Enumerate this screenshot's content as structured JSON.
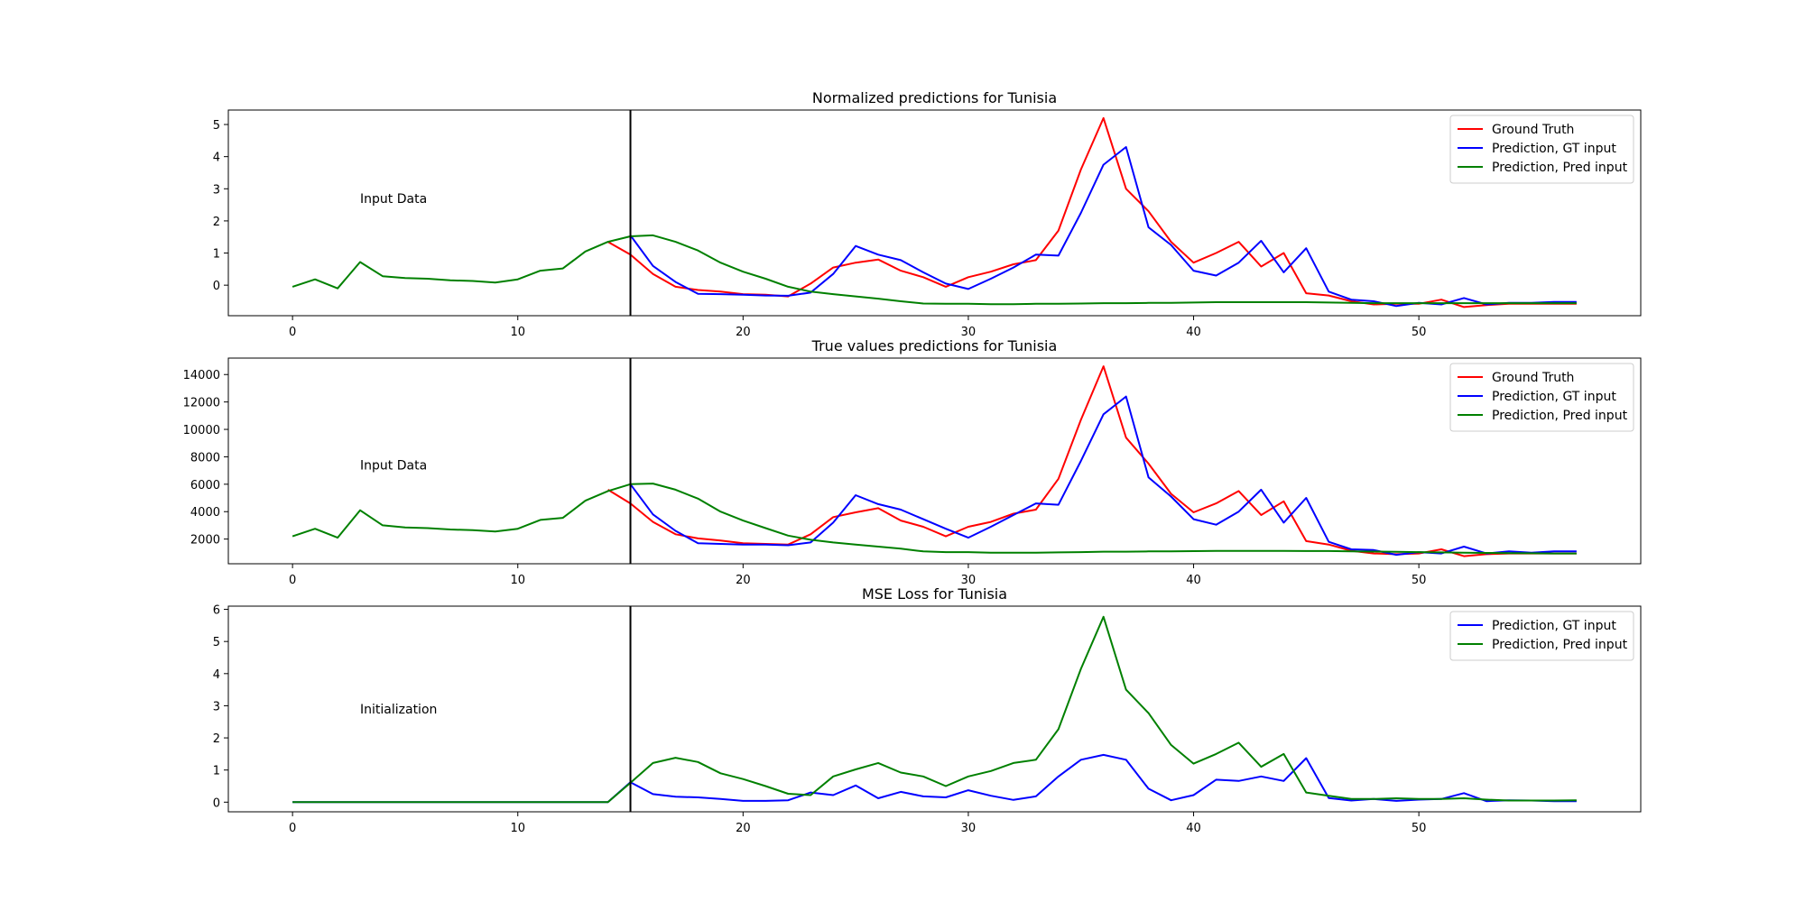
{
  "chart_data": [
    {
      "type": "line",
      "title": "Normalized predictions for Tunisia",
      "xlabel": "",
      "ylabel": "",
      "xlim": [
        -2.85,
        59.85
      ],
      "ylim": [
        -0.95,
        5.45
      ],
      "xticks": [
        0,
        10,
        20,
        30,
        40,
        50
      ],
      "yticks": [
        0,
        1,
        2,
        3,
        4,
        5
      ],
      "vline_x": 15,
      "annotation": {
        "text": "Input Data",
        "x": 3,
        "y": 2.7
      },
      "legend_position": "top-right",
      "grid": false,
      "series": [
        {
          "name": "Ground Truth",
          "color": "#ff0000",
          "x": [
            14,
            15,
            16,
            17,
            18,
            19,
            20,
            21,
            22,
            23,
            24,
            25,
            26,
            27,
            28,
            29,
            30,
            31,
            32,
            33,
            34,
            35,
            36,
            37,
            38,
            39,
            40,
            41,
            42,
            43,
            44,
            45,
            46,
            47,
            48,
            49,
            50,
            51,
            52,
            53,
            54,
            55,
            56,
            57
          ],
          "values": [
            1.35,
            0.95,
            0.35,
            -0.05,
            -0.15,
            -0.2,
            -0.28,
            -0.3,
            -0.35,
            0.05,
            0.55,
            0.7,
            0.8,
            0.45,
            0.25,
            -0.05,
            0.25,
            0.42,
            0.65,
            0.78,
            1.7,
            3.6,
            5.2,
            3.0,
            2.3,
            1.35,
            0.7,
            1.0,
            1.35,
            0.58,
            1.0,
            -0.25,
            -0.32,
            -0.5,
            -0.6,
            -0.58,
            -0.58,
            -0.45,
            -0.68,
            -0.62,
            -0.58,
            -0.58,
            -0.58,
            -0.58
          ]
        },
        {
          "name": "Prediction, GT input",
          "color": "#0000ff",
          "x": [
            15,
            16,
            17,
            18,
            19,
            20,
            21,
            22,
            23,
            24,
            25,
            26,
            27,
            28,
            29,
            30,
            31,
            32,
            33,
            34,
            35,
            36,
            37,
            38,
            39,
            40,
            41,
            42,
            43,
            44,
            45,
            46,
            47,
            48,
            49,
            50,
            51,
            52,
            53,
            54,
            55,
            56,
            57
          ],
          "values": [
            1.55,
            0.6,
            0.1,
            -0.27,
            -0.28,
            -0.3,
            -0.32,
            -0.33,
            -0.23,
            0.35,
            1.22,
            0.95,
            0.78,
            0.4,
            0.05,
            -0.12,
            0.2,
            0.55,
            0.95,
            0.92,
            2.25,
            3.75,
            4.3,
            1.8,
            1.25,
            0.45,
            0.3,
            0.7,
            1.38,
            0.4,
            1.15,
            -0.2,
            -0.45,
            -0.5,
            -0.65,
            -0.55,
            -0.6,
            -0.4,
            -0.6,
            -0.55,
            -0.55,
            -0.52,
            -0.52
          ]
        },
        {
          "name": "Prediction, Pred input",
          "color": "#008000",
          "x": [
            0,
            1,
            2,
            3,
            4,
            5,
            6,
            7,
            8,
            9,
            10,
            11,
            12,
            13,
            14,
            15,
            16,
            17,
            18,
            19,
            20,
            21,
            22,
            23,
            24,
            25,
            26,
            27,
            28,
            29,
            30,
            31,
            32,
            33,
            34,
            35,
            36,
            37,
            38,
            39,
            40,
            41,
            42,
            43,
            44,
            45,
            46,
            47,
            48,
            49,
            50,
            51,
            52,
            53,
            54,
            55,
            56,
            57
          ],
          "values": [
            -0.05,
            0.18,
            -0.1,
            0.72,
            0.28,
            0.22,
            0.2,
            0.15,
            0.13,
            0.08,
            0.18,
            0.45,
            0.52,
            1.05,
            1.35,
            1.52,
            1.55,
            1.35,
            1.08,
            0.7,
            0.42,
            0.2,
            -0.05,
            -0.2,
            -0.28,
            -0.35,
            -0.42,
            -0.5,
            -0.57,
            -0.58,
            -0.58,
            -0.59,
            -0.59,
            -0.58,
            -0.58,
            -0.57,
            -0.56,
            -0.56,
            -0.55,
            -0.55,
            -0.54,
            -0.53,
            -0.53,
            -0.53,
            -0.53,
            -0.53,
            -0.54,
            -0.55,
            -0.56,
            -0.56,
            -0.56,
            -0.56,
            -0.56,
            -0.56,
            -0.56,
            -0.56,
            -0.56,
            -0.56
          ]
        }
      ]
    },
    {
      "type": "line",
      "title": "True values predictions for Tunisia",
      "xlabel": "",
      "ylabel": "",
      "xlim": [
        -2.85,
        59.85
      ],
      "ylim": [
        200,
        15200
      ],
      "xticks": [
        0,
        10,
        20,
        30,
        40,
        50
      ],
      "yticks": [
        2000,
        4000,
        6000,
        8000,
        10000,
        12000,
        14000
      ],
      "vline_x": 15,
      "annotation": {
        "text": "Input Data",
        "x": 3,
        "y": 7400
      },
      "legend_position": "top-right",
      "grid": false,
      "series": [
        {
          "name": "Ground Truth",
          "color": "#ff0000",
          "x": [
            14,
            15,
            16,
            17,
            18,
            19,
            20,
            21,
            22,
            23,
            24,
            25,
            26,
            27,
            28,
            29,
            30,
            31,
            32,
            33,
            34,
            35,
            36,
            37,
            38,
            39,
            40,
            41,
            42,
            43,
            44,
            45,
            46,
            47,
            48,
            49,
            50,
            51,
            52,
            53,
            54,
            55,
            56,
            57
          ],
          "values": [
            5600,
            4600,
            3250,
            2350,
            2050,
            1900,
            1700,
            1650,
            1600,
            2350,
            3600,
            3950,
            4250,
            3350,
            2900,
            2200,
            2900,
            3250,
            3850,
            4150,
            6400,
            10700,
            14600,
            9400,
            7500,
            5300,
            3950,
            4600,
            5500,
            3750,
            4750,
            1850,
            1600,
            1150,
            950,
            900,
            950,
            1250,
            750,
            900,
            950,
            950,
            950,
            950
          ]
        },
        {
          "name": "Prediction, GT input",
          "color": "#0000ff",
          "x": [
            15,
            16,
            17,
            18,
            19,
            20,
            21,
            22,
            23,
            24,
            25,
            26,
            27,
            28,
            29,
            30,
            31,
            32,
            33,
            34,
            35,
            36,
            37,
            38,
            39,
            40,
            41,
            42,
            43,
            44,
            45,
            46,
            47,
            48,
            49,
            50,
            51,
            52,
            53,
            54,
            55,
            56,
            57
          ],
          "values": [
            6000,
            3800,
            2600,
            1700,
            1650,
            1600,
            1600,
            1550,
            1750,
            3200,
            5200,
            4550,
            4150,
            3450,
            2750,
            2100,
            2900,
            3750,
            4600,
            4500,
            7700,
            11100,
            12400,
            6500,
            5100,
            3450,
            3050,
            4000,
            5600,
            3200,
            5000,
            1800,
            1250,
            1200,
            850,
            1050,
            950,
            1450,
            950,
            1100,
            1000,
            1100,
            1100
          ]
        },
        {
          "name": "Prediction, Pred input",
          "color": "#008000",
          "x": [
            0,
            1,
            2,
            3,
            4,
            5,
            6,
            7,
            8,
            9,
            10,
            11,
            12,
            13,
            14,
            15,
            16,
            17,
            18,
            19,
            20,
            21,
            22,
            23,
            24,
            25,
            26,
            27,
            28,
            29,
            30,
            31,
            32,
            33,
            34,
            35,
            36,
            37,
            38,
            39,
            40,
            41,
            42,
            43,
            44,
            45,
            46,
            47,
            48,
            49,
            50,
            51,
            52,
            53,
            54,
            55,
            56,
            57
          ],
          "values": [
            2200,
            2750,
            2100,
            4100,
            3000,
            2850,
            2800,
            2700,
            2650,
            2550,
            2750,
            3400,
            3550,
            4800,
            5500,
            6000,
            6050,
            5600,
            4950,
            4000,
            3350,
            2800,
            2250,
            1950,
            1750,
            1600,
            1450,
            1300,
            1100,
            1050,
            1050,
            1000,
            1000,
            1010,
            1030,
            1050,
            1080,
            1080,
            1100,
            1100,
            1120,
            1140,
            1140,
            1140,
            1140,
            1130,
            1130,
            1110,
            1090,
            1070,
            1050,
            1030,
            1010,
            990,
            970,
            960,
            950,
            950
          ]
        }
      ]
    },
    {
      "type": "line",
      "title": "MSE Loss for Tunisia",
      "xlabel": "",
      "ylabel": "",
      "xlim": [
        -2.85,
        59.85
      ],
      "ylim": [
        -0.3,
        6.1
      ],
      "xticks": [
        0,
        10,
        20,
        30,
        40,
        50
      ],
      "yticks": [
        0,
        1,
        2,
        3,
        4,
        5,
        6
      ],
      "vline_x": 15,
      "annotation": {
        "text": "Initialization",
        "x": 3,
        "y": 2.9
      },
      "legend_position": "top-right",
      "grid": false,
      "series": [
        {
          "name": "Prediction, GT input",
          "color": "#0000ff",
          "x": [
            0,
            1,
            2,
            3,
            4,
            5,
            6,
            7,
            8,
            9,
            10,
            11,
            12,
            13,
            14,
            15,
            16,
            17,
            18,
            19,
            20,
            21,
            22,
            23,
            24,
            25,
            26,
            27,
            28,
            29,
            30,
            31,
            32,
            33,
            34,
            35,
            36,
            37,
            38,
            39,
            40,
            41,
            42,
            43,
            44,
            45,
            46,
            47,
            48,
            49,
            50,
            51,
            52,
            53,
            54,
            55,
            56,
            57
          ],
          "values": [
            0,
            0,
            0,
            0,
            0,
            0,
            0,
            0,
            0,
            0,
            0,
            0,
            0,
            0,
            0,
            0.62,
            0.25,
            0.17,
            0.15,
            0.1,
            0.04,
            0.04,
            0.06,
            0.3,
            0.22,
            0.52,
            0.12,
            0.32,
            0.18,
            0.15,
            0.37,
            0.2,
            0.07,
            0.18,
            0.8,
            1.32,
            1.47,
            1.32,
            0.42,
            0.06,
            0.22,
            0.7,
            0.66,
            0.8,
            0.66,
            1.37,
            0.13,
            0.05,
            0.1,
            0.04,
            0.08,
            0.1,
            0.28,
            0.03,
            0.06,
            0.05,
            0.03,
            0.03
          ]
        },
        {
          "name": "Prediction, Pred input",
          "color": "#008000",
          "x": [
            0,
            1,
            2,
            3,
            4,
            5,
            6,
            7,
            8,
            9,
            10,
            11,
            12,
            13,
            14,
            15,
            16,
            17,
            18,
            19,
            20,
            21,
            22,
            23,
            24,
            25,
            26,
            27,
            28,
            29,
            30,
            31,
            32,
            33,
            34,
            35,
            36,
            37,
            38,
            39,
            40,
            41,
            42,
            43,
            44,
            45,
            46,
            47,
            48,
            49,
            50,
            51,
            52,
            53,
            54,
            55,
            56,
            57
          ],
          "values": [
            0,
            0,
            0,
            0,
            0,
            0,
            0,
            0,
            0,
            0,
            0,
            0,
            0,
            0,
            0,
            0.6,
            1.22,
            1.38,
            1.25,
            0.9,
            0.72,
            0.5,
            0.26,
            0.22,
            0.8,
            1.02,
            1.22,
            0.92,
            0.8,
            0.5,
            0.8,
            0.97,
            1.22,
            1.32,
            2.27,
            4.15,
            5.77,
            3.5,
            2.77,
            1.78,
            1.2,
            1.5,
            1.85,
            1.1,
            1.5,
            0.3,
            0.2,
            0.1,
            0.1,
            0.12,
            0.1,
            0.1,
            0.12,
            0.08,
            0.05,
            0.05,
            0.05,
            0.06
          ]
        }
      ]
    }
  ]
}
